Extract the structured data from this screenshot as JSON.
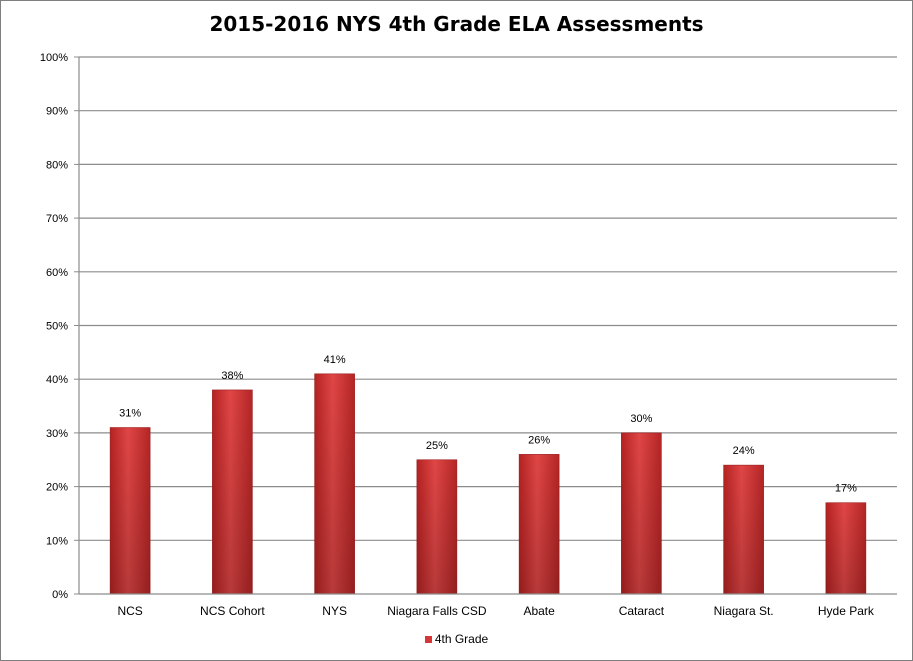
{
  "chart_data": {
    "type": "bar",
    "title": "2015-2016 NYS 4th Grade ELA Assessments",
    "ylabel": "",
    "xlabel": "",
    "ylim": [
      0,
      100
    ],
    "y_ticks": [
      "0%",
      "10%",
      "20%",
      "30%",
      "40%",
      "50%",
      "60%",
      "70%",
      "80%",
      "90%",
      "100%"
    ],
    "categories": [
      "NCS",
      "NCS Cohort",
      "NYS",
      "Niagara Falls CSD",
      "Abate",
      "Cataract",
      "Niagara St.",
      "Hyde Park"
    ],
    "series": [
      {
        "name": "4th Grade",
        "values": [
          31,
          38,
          41,
          25,
          26,
          30,
          24,
          17
        ],
        "labels": [
          "31%",
          "38%",
          "41%",
          "25%",
          "26%",
          "30%",
          "24%",
          "17%"
        ]
      }
    ],
    "grid": true,
    "legend_position": "bottom",
    "bar_color": "#d83636"
  }
}
